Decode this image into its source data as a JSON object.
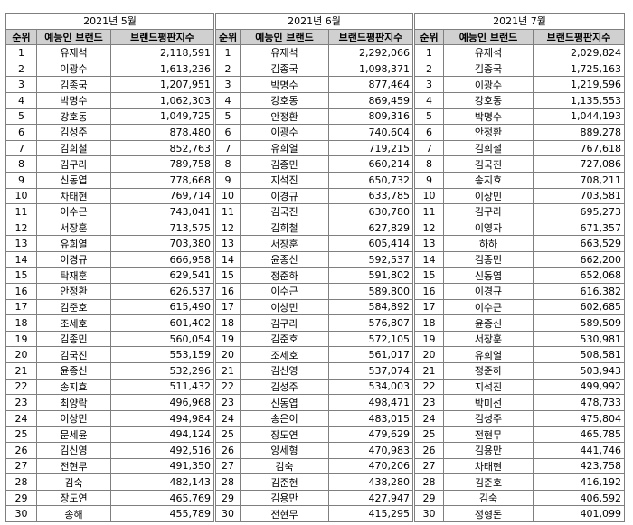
{
  "headers": [
    "순위",
    "예능인 브랜드",
    "브랜드평판지수"
  ],
  "months": [
    {
      "title": "2021년 5월",
      "rows": [
        [
          1,
          "유재석",
          "2,118,591"
        ],
        [
          2,
          "이광수",
          "1,613,236"
        ],
        [
          3,
          "김종국",
          "1,207,951"
        ],
        [
          4,
          "박명수",
          "1,062,303"
        ],
        [
          5,
          "강호동",
          "1,049,725"
        ],
        [
          6,
          "김성주",
          "878,480"
        ],
        [
          7,
          "김희철",
          "852,763"
        ],
        [
          8,
          "김구라",
          "789,758"
        ],
        [
          9,
          "신동엽",
          "778,668"
        ],
        [
          10,
          "차태현",
          "769,714"
        ],
        [
          11,
          "이수근",
          "743,041"
        ],
        [
          12,
          "서장훈",
          "713,575"
        ],
        [
          13,
          "유희열",
          "703,380"
        ],
        [
          14,
          "이경규",
          "666,958"
        ],
        [
          15,
          "탁재훈",
          "629,541"
        ],
        [
          16,
          "안정환",
          "626,537"
        ],
        [
          17,
          "김준호",
          "615,490"
        ],
        [
          18,
          "조세호",
          "601,402"
        ],
        [
          19,
          "김종민",
          "560,054"
        ],
        [
          20,
          "김국진",
          "553,159"
        ],
        [
          21,
          "윤종신",
          "532,296"
        ],
        [
          22,
          "송지효",
          "511,432"
        ],
        [
          23,
          "최양락",
          "496,968"
        ],
        [
          24,
          "이상민",
          "494,984"
        ],
        [
          25,
          "문세윤",
          "494,124"
        ],
        [
          26,
          "김신영",
          "492,516"
        ],
        [
          27,
          "전현무",
          "491,350"
        ],
        [
          28,
          "김숙",
          "482,143"
        ],
        [
          29,
          "장도연",
          "465,769"
        ],
        [
          30,
          "송해",
          "455,789"
        ]
      ]
    },
    {
      "title": "2021년 6월",
      "rows": [
        [
          1,
          "유재석",
          "2,292,066"
        ],
        [
          2,
          "김종국",
          "1,098,371"
        ],
        [
          3,
          "박명수",
          "877,464"
        ],
        [
          4,
          "강호동",
          "869,459"
        ],
        [
          5,
          "안정환",
          "809,316"
        ],
        [
          6,
          "이광수",
          "740,604"
        ],
        [
          7,
          "유희열",
          "719,215"
        ],
        [
          8,
          "김종민",
          "660,214"
        ],
        [
          9,
          "지석진",
          "650,732"
        ],
        [
          10,
          "이경규",
          "633,785"
        ],
        [
          11,
          "김국진",
          "630,780"
        ],
        [
          12,
          "김희철",
          "627,829"
        ],
        [
          13,
          "서장훈",
          "605,414"
        ],
        [
          14,
          "윤종신",
          "592,537"
        ],
        [
          15,
          "정준하",
          "591,802"
        ],
        [
          16,
          "이수근",
          "589,800"
        ],
        [
          17,
          "이상민",
          "584,892"
        ],
        [
          18,
          "김구라",
          "576,807"
        ],
        [
          19,
          "김준호",
          "572,105"
        ],
        [
          20,
          "조세호",
          "561,017"
        ],
        [
          21,
          "김신영",
          "537,074"
        ],
        [
          22,
          "김성주",
          "534,003"
        ],
        [
          23,
          "신동엽",
          "498,471"
        ],
        [
          24,
          "송은이",
          "483,015"
        ],
        [
          25,
          "장도연",
          "479,629"
        ],
        [
          26,
          "양세형",
          "470,983"
        ],
        [
          27,
          "김숙",
          "470,206"
        ],
        [
          28,
          "김준현",
          "438,280"
        ],
        [
          29,
          "김용만",
          "427,947"
        ],
        [
          30,
          "전현무",
          "415,295"
        ]
      ]
    },
    {
      "title": "2021년 7월",
      "rows": [
        [
          1,
          "유재석",
          "2,029,824"
        ],
        [
          2,
          "김종국",
          "1,725,163"
        ],
        [
          3,
          "이광수",
          "1,219,596"
        ],
        [
          4,
          "강호동",
          "1,135,553"
        ],
        [
          5,
          "박명수",
          "1,044,193"
        ],
        [
          6,
          "안정환",
          "889,278"
        ],
        [
          7,
          "김희철",
          "767,618"
        ],
        [
          8,
          "김국진",
          "727,086"
        ],
        [
          9,
          "송지효",
          "708,211"
        ],
        [
          10,
          "이상민",
          "703,581"
        ],
        [
          11,
          "김구라",
          "695,273"
        ],
        [
          12,
          "이영자",
          "671,357"
        ],
        [
          13,
          "하하",
          "663,529"
        ],
        [
          14,
          "김종민",
          "662,200"
        ],
        [
          15,
          "신동엽",
          "652,068"
        ],
        [
          16,
          "이경규",
          "616,382"
        ],
        [
          17,
          "이수근",
          "602,685"
        ],
        [
          18,
          "윤종신",
          "589,509"
        ],
        [
          19,
          "서장훈",
          "530,981"
        ],
        [
          20,
          "유희열",
          "508,581"
        ],
        [
          21,
          "정준하",
          "503,943"
        ],
        [
          22,
          "지석진",
          "499,992"
        ],
        [
          23,
          "박미선",
          "478,733"
        ],
        [
          24,
          "김성주",
          "475,804"
        ],
        [
          25,
          "전현무",
          "465,785"
        ],
        [
          26,
          "김용만",
          "441,746"
        ],
        [
          27,
          "차태현",
          "423,758"
        ],
        [
          28,
          "김준호",
          "416,192"
        ],
        [
          29,
          "김숙",
          "406,592"
        ],
        [
          30,
          "정형돈",
          "401,099"
        ]
      ]
    }
  ]
}
